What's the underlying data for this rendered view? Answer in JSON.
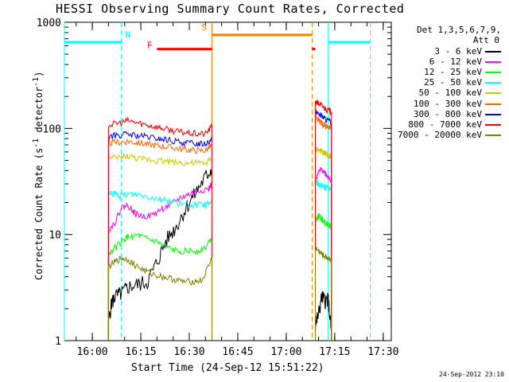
{
  "chart_data": {
    "type": "line",
    "title": "HESSI Observing Summary Count Rates, Corrected",
    "xlabel": "Start Time (24-Sep-12 15:51:22)",
    "ylabel": "Corrected Count Rate (s",
    "ylabel_sup": "-1",
    "ylabel_tail": " detector",
    "ylabel_sup2": "-1",
    "ylabel_end": ")",
    "yscale": "log",
    "ylim": [
      1,
      1000
    ],
    "y_ticks": [
      {
        "v": 1,
        "label": "1"
      },
      {
        "v": 10,
        "label": "10"
      },
      {
        "v": 100,
        "label": "100"
      },
      {
        "v": 1000,
        "label": "1000"
      }
    ],
    "xlim": [
      "15:51:22",
      "17:32:30"
    ],
    "x_ticks": [
      "16:00",
      "16:15",
      "16:30",
      "16:45",
      "17:00",
      "17:15",
      "17:30"
    ],
    "grid": false,
    "legend_header": [
      "Det 1,3,5,6,7,9,",
      "Att 0"
    ],
    "legend_position": "top-right",
    "series": [
      {
        "name": "3 - 6 keV",
        "color": "#000000",
        "segments": [
          [
            [
              "16:05",
              1.5
            ],
            [
              "16:06",
              2.3
            ],
            [
              "16:07",
              2.6
            ],
            [
              "16:09",
              2.8
            ],
            [
              "16:11",
              3.2
            ],
            [
              "16:14",
              3.4
            ],
            [
              "16:17",
              3.6
            ],
            [
              "16:20",
              5.5
            ],
            [
              "16:23",
              9
            ],
            [
              "16:26",
              12
            ],
            [
              "16:29",
              18
            ],
            [
              "16:32",
              25
            ],
            [
              "16:35",
              35
            ],
            [
              "16:37",
              42
            ]
          ],
          [
            [
              "17:09",
              1.4
            ],
            [
              "17:10",
              1.8
            ],
            [
              "17:11",
              2.6
            ],
            [
              "17:12",
              2.4
            ],
            [
              "17:13",
              2.4
            ],
            [
              "17:14",
              1.2
            ]
          ]
        ]
      },
      {
        "name": "6 - 12 keV",
        "color": "#ff00ff",
        "segments": [
          [
            [
              "16:05",
              11
            ],
            [
              "16:07",
              13
            ],
            [
              "16:09",
              18
            ],
            [
              "16:11",
              19
            ],
            [
              "16:13",
              16
            ],
            [
              "16:15",
              15
            ],
            [
              "16:18",
              15
            ],
            [
              "16:21",
              17
            ],
            [
              "16:24",
              19
            ],
            [
              "16:27",
              22
            ],
            [
              "16:30",
              24
            ],
            [
              "16:33",
              26
            ],
            [
              "16:36",
              27
            ],
            [
              "16:37",
              30
            ]
          ],
          [
            [
              "17:09",
              30
            ],
            [
              "17:10",
              38
            ],
            [
              "17:11",
              42
            ],
            [
              "17:12",
              38
            ],
            [
              "17:13",
              35
            ],
            [
              "17:14",
              32
            ]
          ]
        ]
      },
      {
        "name": "12 - 25 keV",
        "color": "#00ff00",
        "segments": [
          [
            [
              "16:05",
              6.5
            ],
            [
              "16:07",
              7.5
            ],
            [
              "16:09",
              8.5
            ],
            [
              "16:11",
              9.5
            ],
            [
              "16:14",
              9.8
            ],
            [
              "16:17",
              9
            ],
            [
              "16:20",
              8.5
            ],
            [
              "16:23",
              7.5
            ],
            [
              "16:26",
              7
            ],
            [
              "16:29",
              7
            ],
            [
              "16:32",
              7
            ],
            [
              "16:35",
              7.5
            ],
            [
              "16:37",
              9.5
            ]
          ],
          [
            [
              "17:09",
              14
            ],
            [
              "17:10",
              15
            ],
            [
              "17:11",
              14
            ],
            [
              "17:12",
              13
            ],
            [
              "17:13",
              12.5
            ],
            [
              "17:14",
              12
            ]
          ]
        ]
      },
      {
        "name": "25 - 50 keV",
        "color": "#00ffff",
        "segments": [
          [
            [
              "16:05",
              25
            ],
            [
              "16:07",
              24
            ],
            [
              "16:09",
              23
            ],
            [
              "16:11",
              24
            ],
            [
              "16:14",
              24
            ],
            [
              "16:17",
              23
            ],
            [
              "16:20",
              22
            ],
            [
              "16:23",
              21
            ],
            [
              "16:26",
              20
            ],
            [
              "16:29",
              19
            ],
            [
              "16:32",
              19
            ],
            [
              "16:35",
              19
            ],
            [
              "16:37",
              20
            ]
          ],
          [
            [
              "17:09",
              32
            ],
            [
              "17:10",
              30
            ],
            [
              "17:11",
              29
            ],
            [
              "17:12",
              28
            ],
            [
              "17:13",
              27
            ],
            [
              "17:14",
              26
            ]
          ]
        ]
      },
      {
        "name": "50 - 100 keV",
        "color": "#d4c400",
        "segments": [
          [
            [
              "16:05",
              52
            ],
            [
              "16:08",
              53
            ],
            [
              "16:11",
              55
            ],
            [
              "16:14",
              52
            ],
            [
              "16:17",
              51
            ],
            [
              "16:20",
              50
            ],
            [
              "16:23",
              49
            ],
            [
              "16:26",
              48
            ],
            [
              "16:29",
              47
            ],
            [
              "16:32",
              47
            ],
            [
              "16:35",
              47
            ],
            [
              "16:37",
              52
            ]
          ],
          [
            [
              "17:09",
              65
            ],
            [
              "17:10",
              62
            ],
            [
              "17:11",
              60
            ],
            [
              "17:12",
              58
            ],
            [
              "17:13",
              56
            ],
            [
              "17:14",
              54
            ]
          ]
        ]
      },
      {
        "name": "100 - 300 keV",
        "color": "#ff6600",
        "segments": [
          [
            [
              "16:05",
              73
            ],
            [
              "16:08",
              74
            ],
            [
              "16:11",
              76
            ],
            [
              "16:14",
              73
            ],
            [
              "16:17",
              71
            ],
            [
              "16:20",
              69
            ],
            [
              "16:23",
              67
            ],
            [
              "16:26",
              65
            ],
            [
              "16:29",
              63
            ],
            [
              "16:32",
              62
            ],
            [
              "16:35",
              62
            ],
            [
              "16:37",
              70
            ]
          ],
          [
            [
              "17:09",
              125
            ],
            [
              "17:10",
              118
            ],
            [
              "17:11",
              112
            ],
            [
              "17:12",
              106
            ],
            [
              "17:13",
              101
            ],
            [
              "17:14",
              97
            ]
          ]
        ]
      },
      {
        "name": "300 - 800 keV",
        "color": "#0000ff",
        "segments": [
          [
            [
              "16:05",
              84
            ],
            [
              "16:08",
              86
            ],
            [
              "16:11",
              88
            ],
            [
              "16:14",
              85
            ],
            [
              "16:17",
              83
            ],
            [
              "16:20",
              80
            ],
            [
              "16:23",
              78
            ],
            [
              "16:26",
              75
            ],
            [
              "16:29",
              73
            ],
            [
              "16:32",
              72
            ],
            [
              "16:35",
              72
            ],
            [
              "16:37",
              80
            ]
          ],
          [
            [
              "17:09",
              145
            ],
            [
              "17:10",
              138
            ],
            [
              "17:11",
              130
            ],
            [
              "17:12",
              123
            ],
            [
              "17:13",
              117
            ],
            [
              "17:14",
              112
            ]
          ]
        ]
      },
      {
        "name": "800 - 7000 keV",
        "color": "#ff0000",
        "segments": [
          [
            [
              "16:05",
              108
            ],
            [
              "16:08",
              112
            ],
            [
              "16:11",
              118
            ],
            [
              "16:14",
              113
            ],
            [
              "16:17",
              108
            ],
            [
              "16:20",
              103
            ],
            [
              "16:23",
              98
            ],
            [
              "16:26",
              94
            ],
            [
              "16:29",
              91
            ],
            [
              "16:32",
              89
            ],
            [
              "16:35",
              89
            ],
            [
              "16:37",
              105
            ]
          ],
          [
            [
              "17:09",
              180
            ],
            [
              "17:10",
              172
            ],
            [
              "17:11",
              163
            ],
            [
              "17:12",
              155
            ],
            [
              "17:13",
              148
            ],
            [
              "17:14",
              142
            ]
          ]
        ]
      },
      {
        "name": "7000 - 20000 keV",
        "color": "#808000",
        "segments": [
          [
            [
              "16:05",
              5
            ],
            [
              "16:07",
              5.5
            ],
            [
              "16:09",
              6
            ],
            [
              "16:11",
              5.8
            ],
            [
              "16:13",
              5.2
            ],
            [
              "16:16",
              4.6
            ],
            [
              "16:19",
              4.2
            ],
            [
              "16:22",
              4
            ],
            [
              "16:25",
              3.8
            ],
            [
              "16:28",
              3.6
            ],
            [
              "16:31",
              3.6
            ],
            [
              "16:34",
              3.7
            ],
            [
              "16:37",
              6
            ]
          ],
          [
            [
              "17:09",
              7.5
            ],
            [
              "17:10",
              7
            ],
            [
              "17:11",
              6.5
            ],
            [
              "17:12",
              6.2
            ],
            [
              "17:13",
              6
            ],
            [
              "17:14",
              5.8
            ]
          ]
        ]
      }
    ],
    "event_bars": [
      {
        "label": "N",
        "color": "#00ffff",
        "value": 650,
        "segments": [
          [
            "15:51:22",
            "16:09"
          ],
          [
            "17:13",
            "17:26"
          ]
        ]
      },
      {
        "label": "F",
        "color": "#ff0000",
        "value": 560,
        "segments": [
          [
            "16:20",
            "16:37"
          ],
          [
            "17:08",
            "17:09"
          ]
        ]
      },
      {
        "label": "S",
        "color": "#ff8000",
        "value": 760,
        "segments": [
          [
            "16:37",
            "17:08"
          ]
        ]
      }
    ],
    "vertical_markers": [
      {
        "time": "15:51:22",
        "color": "#00ffff",
        "dashed": false
      },
      {
        "time": "16:09",
        "color": "#00ffff",
        "dashed": true
      },
      {
        "time": "16:37",
        "color": "#ff8000",
        "dashed": false
      },
      {
        "time": "17:08",
        "color": "#ff8000",
        "dashed": true
      },
      {
        "time": "17:13",
        "color": "#00ffff",
        "dashed": false
      },
      {
        "time": "17:26",
        "color": "#00ffff",
        "dashed": true
      }
    ]
  },
  "footer_stamp": "24-Sep-2012 23:10"
}
